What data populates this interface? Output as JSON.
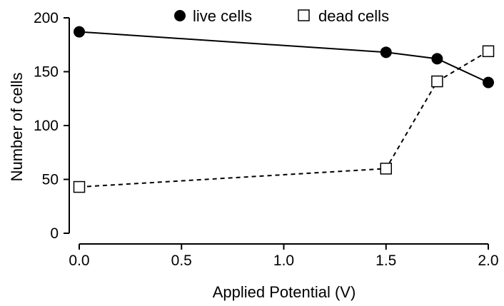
{
  "chart_data": {
    "type": "line",
    "title": "",
    "xlabel": "Applied Potential (V)",
    "ylabel": "Number of cells",
    "xlim": [
      0,
      2
    ],
    "ylim": [
      0,
      200
    ],
    "x_ticks": [
      "0.0",
      "0.5",
      "1.0",
      "1.5",
      "2.0"
    ],
    "y_ticks": [
      "0",
      "50",
      "100",
      "150",
      "200"
    ],
    "grid": false,
    "legend_position": "top",
    "series": [
      {
        "name": "live cells",
        "marker": "filled-circle",
        "line_style": "solid",
        "x": [
          0.0,
          1.5,
          1.75,
          2.0
        ],
        "y": [
          187,
          168,
          162,
          140
        ]
      },
      {
        "name": "dead cells",
        "marker": "open-square",
        "line_style": "dashed",
        "x": [
          0.0,
          1.5,
          1.75,
          2.0
        ],
        "y": [
          43,
          60,
          141,
          169
        ]
      }
    ]
  }
}
